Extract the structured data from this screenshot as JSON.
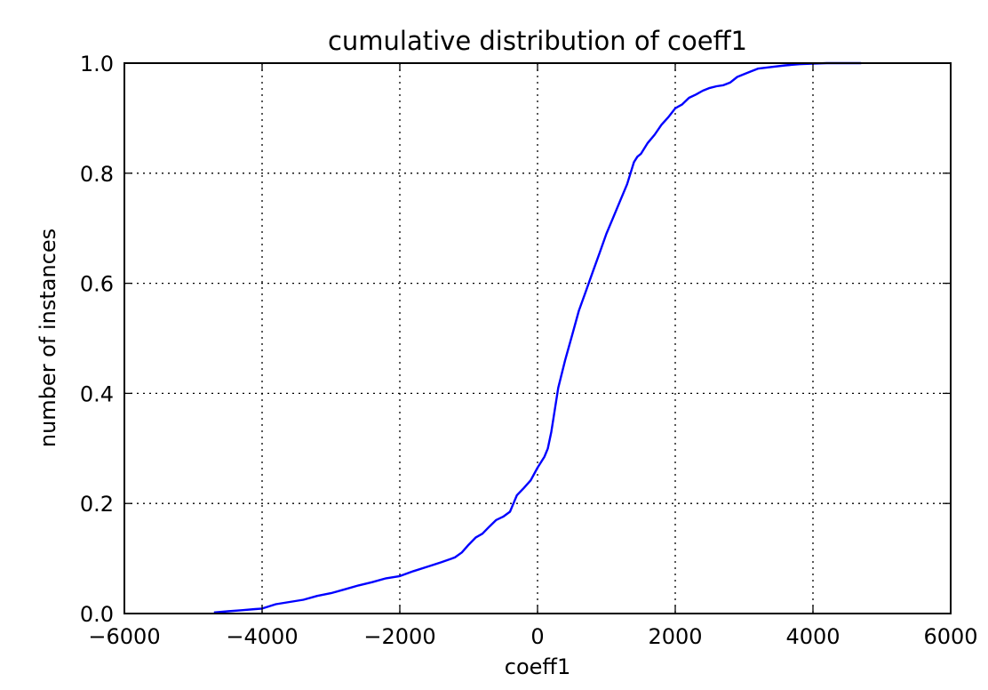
{
  "chart_data": {
    "type": "line",
    "title": "cumulative distribution of coeff1",
    "xlabel": "coeff1",
    "ylabel": "number of instances",
    "xlim": [
      -6000,
      6000
    ],
    "ylim": [
      0.0,
      1.0
    ],
    "x_ticks": [
      "−6000",
      "−4000",
      "−2000",
      "0",
      "2000",
      "4000",
      "6000"
    ],
    "y_ticks": [
      "0.0",
      "0.2",
      "0.4",
      "0.6",
      "0.8",
      "1.0"
    ],
    "grid": true,
    "line_color": "#0000ff",
    "series": [
      {
        "x": [
          -4700,
          -4500,
          -4300,
          -4100,
          -4000,
          -3800,
          -3600,
          -3400,
          -3200,
          -3000,
          -2800,
          -2600,
          -2400,
          -2200,
          -2000,
          -1800,
          -1600,
          -1400,
          -1200,
          -1100,
          -1000,
          -900,
          -800,
          -700,
          -600,
          -500,
          -400,
          -350,
          -300,
          -200,
          -100,
          0,
          100,
          150,
          200,
          250,
          300,
          400,
          500,
          600,
          700,
          800,
          900,
          1000,
          1100,
          1200,
          1300,
          1400,
          1450,
          1500,
          1600,
          1700,
          1800,
          1900,
          2000,
          2100,
          2200,
          2300,
          2400,
          2500,
          2600,
          2700,
          2800,
          2900,
          3000,
          3100,
          3200,
          3400,
          3600,
          3800,
          4000,
          4200,
          4400,
          4700
        ],
        "y": [
          0.002,
          0.004,
          0.006,
          0.008,
          0.009,
          0.017,
          0.021,
          0.025,
          0.032,
          0.037,
          0.044,
          0.051,
          0.057,
          0.064,
          0.068,
          0.077,
          0.085,
          0.093,
          0.102,
          0.111,
          0.125,
          0.138,
          0.145,
          0.158,
          0.17,
          0.176,
          0.185,
          0.2,
          0.215,
          0.228,
          0.242,
          0.265,
          0.285,
          0.3,
          0.33,
          0.37,
          0.41,
          0.46,
          0.505,
          0.55,
          0.585,
          0.62,
          0.655,
          0.69,
          0.72,
          0.75,
          0.78,
          0.82,
          0.83,
          0.835,
          0.855,
          0.87,
          0.888,
          0.902,
          0.918,
          0.925,
          0.937,
          0.943,
          0.95,
          0.955,
          0.958,
          0.96,
          0.965,
          0.975,
          0.98,
          0.985,
          0.99,
          0.993,
          0.996,
          0.998,
          0.999,
          1.0,
          1.0,
          1.0
        ]
      }
    ]
  }
}
